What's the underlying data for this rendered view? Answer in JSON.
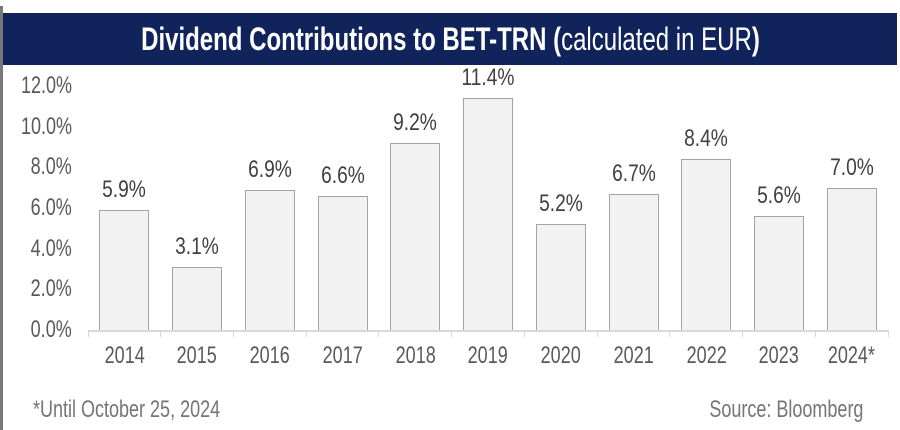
{
  "header": {
    "title_bold": "Dividend Contributions to BET-TRN (",
    "title_light": "calculated in EUR",
    "title_close": ")"
  },
  "chart_data": {
    "type": "bar",
    "title": "Dividend Contributions to BET-TRN (calculated in EUR)",
    "categories": [
      "2014",
      "2015",
      "2016",
      "2017",
      "2018",
      "2019",
      "2020",
      "2021",
      "2022",
      "2023",
      "2024*"
    ],
    "values": [
      5.9,
      3.1,
      6.9,
      6.6,
      9.2,
      11.4,
      5.2,
      6.7,
      8.4,
      5.6,
      7.0
    ],
    "value_labels": [
      "5.9%",
      "3.1%",
      "6.9%",
      "6.6%",
      "9.2%",
      "11.4%",
      "5.2%",
      "6.7%",
      "8.4%",
      "5.6%",
      "7.0%"
    ],
    "y_tick_labels": [
      "0.0%",
      "2.0%",
      "4.0%",
      "6.0%",
      "8.0%",
      "10.0%",
      "12.0%"
    ],
    "ylim": [
      0,
      12
    ],
    "ylabel": "",
    "xlabel": "",
    "grid": false,
    "legend": false,
    "bar_fill": "#F2F2F2",
    "bar_border": "#A3A3A3"
  },
  "footer": {
    "note": "*Until October 25, 2024",
    "source": "Source: Bloomberg"
  },
  "colors": {
    "header_bg": "#11235B",
    "header_text": "#FFFFFF",
    "axis_line": "#D9D9D9",
    "value_label": "#404040",
    "tick_label": "#595959",
    "footer_text": "#757575",
    "left_border": "#787878"
  }
}
